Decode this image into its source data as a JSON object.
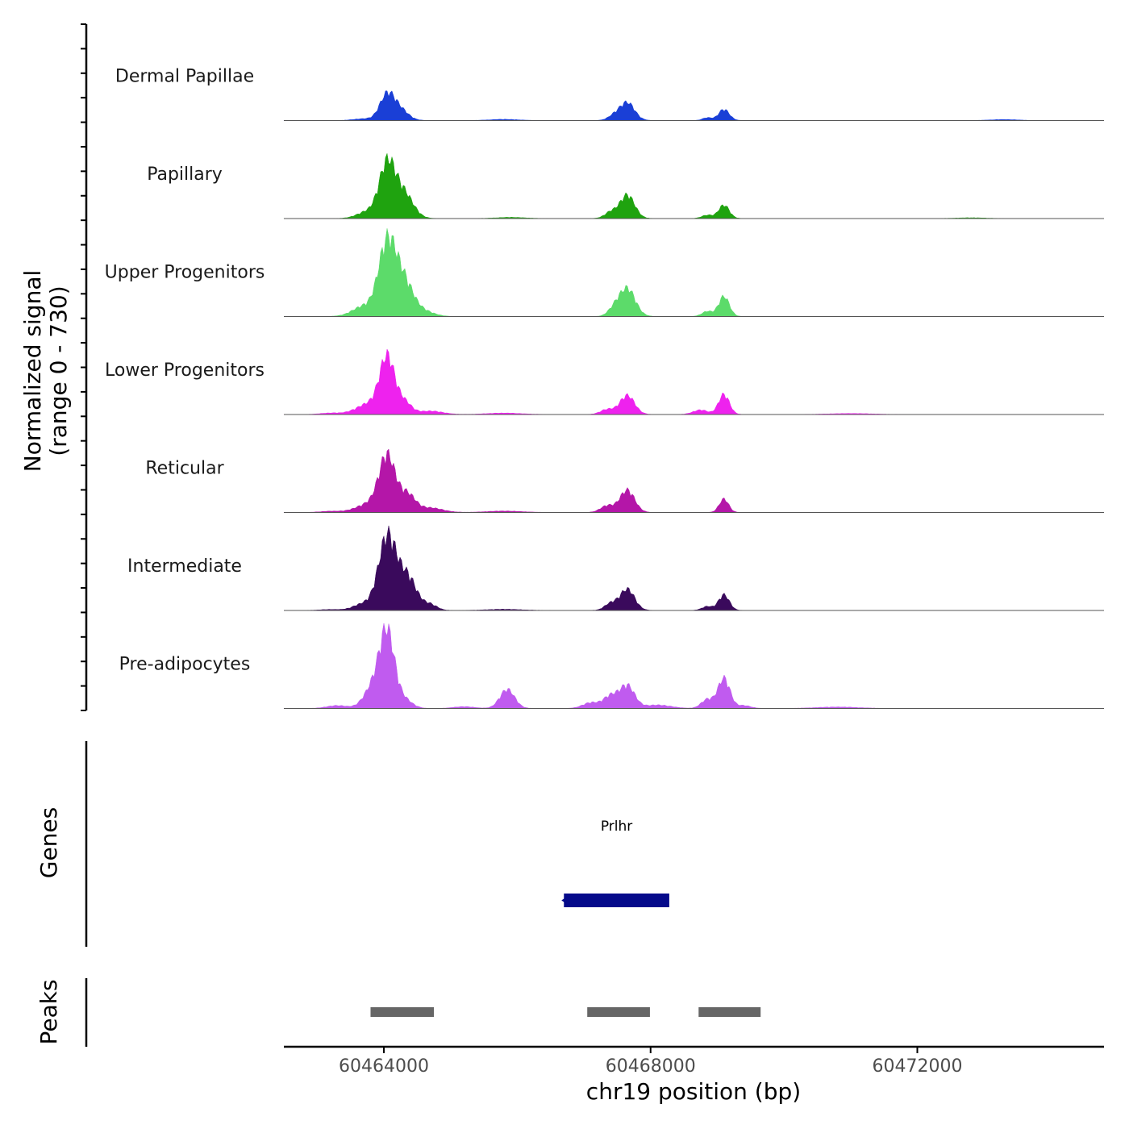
{
  "chart_data": {
    "type": "area",
    "ylabel_line1": "Normalized signal",
    "ylabel_line2": "(range 0 - 730)",
    "xlabel": "chr19 position (bp)",
    "chromosome": "chr19",
    "xlim": [
      60462500,
      60474800
    ],
    "ylim": [
      0,
      730
    ],
    "x_ticks": [
      60464000,
      60468000,
      60472000
    ],
    "x_tick_labels": [
      "60464000",
      "60468000",
      "60472000"
    ],
    "peak_centers": [
      60464050,
      60467650,
      60469100
    ],
    "series": [
      {
        "name": "Dermal Papillae",
        "color": "#1a3fd6",
        "peaks": [
          {
            "x": 60464050,
            "y": 230,
            "w": 110
          },
          {
            "x": 60464250,
            "y": 90,
            "w": 120
          },
          {
            "x": 60467650,
            "y": 160,
            "w": 110
          },
          {
            "x": 60467450,
            "y": 40,
            "w": 90
          },
          {
            "x": 60469100,
            "y": 100,
            "w": 80
          },
          {
            "x": 60468850,
            "y": 25,
            "w": 70
          },
          {
            "x": 60463700,
            "y": 15,
            "w": 150
          },
          {
            "x": 60465800,
            "y": 10,
            "w": 200
          },
          {
            "x": 60473300,
            "y": 8,
            "w": 200
          }
        ]
      },
      {
        "name": "Papillary",
        "color": "#1fa30f",
        "peaks": [
          {
            "x": 60464050,
            "y": 480,
            "w": 120
          },
          {
            "x": 60464300,
            "y": 220,
            "w": 140
          },
          {
            "x": 60463750,
            "y": 60,
            "w": 150
          },
          {
            "x": 60467650,
            "y": 210,
            "w": 110
          },
          {
            "x": 60467400,
            "y": 55,
            "w": 90
          },
          {
            "x": 60469100,
            "y": 120,
            "w": 80
          },
          {
            "x": 60468850,
            "y": 30,
            "w": 80
          },
          {
            "x": 60465900,
            "y": 10,
            "w": 200
          },
          {
            "x": 60472800,
            "y": 6,
            "w": 200
          }
        ]
      },
      {
        "name": "Upper Progenitors",
        "color": "#5cdb6a",
        "peaks": [
          {
            "x": 60464050,
            "y": 640,
            "w": 130
          },
          {
            "x": 60464300,
            "y": 300,
            "w": 140
          },
          {
            "x": 60463700,
            "y": 90,
            "w": 170
          },
          {
            "x": 60464600,
            "y": 45,
            "w": 150
          },
          {
            "x": 60467650,
            "y": 250,
            "w": 120
          },
          {
            "x": 60467450,
            "y": 60,
            "w": 90
          },
          {
            "x": 60469100,
            "y": 180,
            "w": 80
          },
          {
            "x": 60468850,
            "y": 45,
            "w": 80
          }
        ]
      },
      {
        "name": "Lower Progenitors",
        "color": "#ee22ee",
        "peaks": [
          {
            "x": 60464050,
            "y": 480,
            "w": 110
          },
          {
            "x": 60463800,
            "y": 100,
            "w": 200
          },
          {
            "x": 60464300,
            "y": 110,
            "w": 110
          },
          {
            "x": 60464700,
            "y": 30,
            "w": 180
          },
          {
            "x": 60467650,
            "y": 170,
            "w": 110
          },
          {
            "x": 60467350,
            "y": 45,
            "w": 100
          },
          {
            "x": 60469100,
            "y": 180,
            "w": 80
          },
          {
            "x": 60468750,
            "y": 40,
            "w": 110
          },
          {
            "x": 60463200,
            "y": 12,
            "w": 150
          },
          {
            "x": 60465800,
            "y": 12,
            "w": 250
          },
          {
            "x": 60471000,
            "y": 8,
            "w": 300
          }
        ]
      },
      {
        "name": "Reticular",
        "color": "#b416a8",
        "peaks": [
          {
            "x": 60464050,
            "y": 480,
            "w": 120
          },
          {
            "x": 60463800,
            "y": 80,
            "w": 200
          },
          {
            "x": 60464350,
            "y": 160,
            "w": 120
          },
          {
            "x": 60464700,
            "y": 40,
            "w": 180
          },
          {
            "x": 60467650,
            "y": 200,
            "w": 110
          },
          {
            "x": 60467350,
            "y": 60,
            "w": 100
          },
          {
            "x": 60469100,
            "y": 120,
            "w": 70
          },
          {
            "x": 60465800,
            "y": 12,
            "w": 250
          },
          {
            "x": 60463200,
            "y": 10,
            "w": 150
          }
        ]
      },
      {
        "name": "Intermediate",
        "color": "#3a0a5c",
        "peaks": [
          {
            "x": 60464050,
            "y": 650,
            "w": 130
          },
          {
            "x": 60464350,
            "y": 300,
            "w": 140
          },
          {
            "x": 60463700,
            "y": 60,
            "w": 150
          },
          {
            "x": 60464700,
            "y": 50,
            "w": 100
          },
          {
            "x": 60467650,
            "y": 190,
            "w": 110
          },
          {
            "x": 60467400,
            "y": 60,
            "w": 90
          },
          {
            "x": 60469100,
            "y": 140,
            "w": 80
          },
          {
            "x": 60468850,
            "y": 35,
            "w": 80
          },
          {
            "x": 60465800,
            "y": 10,
            "w": 250
          },
          {
            "x": 60463200,
            "y": 8,
            "w": 150
          }
        ]
      },
      {
        "name": "Pre-adipocytes",
        "color": "#c05bef",
        "peaks": [
          {
            "x": 60464050,
            "y": 640,
            "w": 110
          },
          {
            "x": 60463850,
            "y": 200,
            "w": 140
          },
          {
            "x": 60464300,
            "y": 80,
            "w": 120
          },
          {
            "x": 60465850,
            "y": 170,
            "w": 110
          },
          {
            "x": 60467650,
            "y": 200,
            "w": 110
          },
          {
            "x": 60467400,
            "y": 110,
            "w": 110
          },
          {
            "x": 60467100,
            "y": 50,
            "w": 120
          },
          {
            "x": 60468100,
            "y": 30,
            "w": 200
          },
          {
            "x": 60469100,
            "y": 270,
            "w": 90
          },
          {
            "x": 60468850,
            "y": 80,
            "w": 90
          },
          {
            "x": 60469400,
            "y": 25,
            "w": 100
          },
          {
            "x": 60463300,
            "y": 25,
            "w": 150
          },
          {
            "x": 60465200,
            "y": 15,
            "w": 150
          },
          {
            "x": 60470800,
            "y": 12,
            "w": 300
          }
        ]
      }
    ],
    "genes_track": {
      "title": "Genes",
      "genes": [
        {
          "name": "Prlhr",
          "start": 60466700,
          "end": 60468280,
          "strand": "-",
          "color": "#050a8a"
        }
      ]
    },
    "peaks_track": {
      "title": "Peaks",
      "color": "#666666",
      "regions": [
        {
          "start": 60463800,
          "end": 60464750
        },
        {
          "start": 60467050,
          "end": 60467990
        },
        {
          "start": 60468720,
          "end": 60469650
        }
      ]
    }
  }
}
